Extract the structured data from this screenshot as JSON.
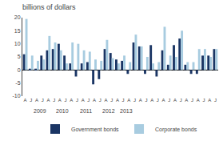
{
  "chart_data": {
    "type": "bar",
    "title": "billions of dollars",
    "categories": [
      "A",
      "J",
      "A",
      "J",
      "A",
      "J",
      "A",
      "J",
      "A",
      "J",
      "A",
      "J",
      "A",
      "J",
      "A",
      "J",
      "A",
      "J",
      "A",
      "J",
      "A",
      "J",
      "A",
      "J",
      "A",
      "J",
      "A",
      "J",
      "A",
      "J",
      "A",
      "J",
      "A",
      "J"
    ],
    "series": [
      {
        "name": "Government bonds",
        "color": "#1a3564",
        "values": [
          6.0,
          0.5,
          0.5,
          5.5,
          7.5,
          8.0,
          10.0,
          5.5,
          2.5,
          -2.5,
          2.5,
          3.0,
          -5.5,
          -3.5,
          8.0,
          6.5,
          4.0,
          3.5,
          -1.5,
          10.5,
          9.0,
          -1.5,
          9.5,
          -2.5,
          7.5,
          2.0,
          9.5,
          12.0,
          2.0,
          -1.5,
          -1.5,
          5.5,
          5.5,
          8.0
        ]
      },
      {
        "name": "Corporate bonds",
        "color": "#a8cce0",
        "values": [
          19.5,
          5.5,
          3.5,
          4.0,
          13.0,
          10.5,
          7.5,
          2.5,
          10.5,
          10.0,
          7.5,
          7.0,
          4.0,
          3.5,
          11.5,
          4.5,
          2.5,
          5.5,
          3.0,
          13.5,
          9.0,
          5.0,
          2.5,
          3.0,
          16.5,
          5.5,
          5.0,
          15.0,
          3.0,
          3.0,
          8.0,
          8.0,
          5.0,
          8.0
        ]
      }
    ],
    "ylim": [
      -10,
      20
    ],
    "yticks": [
      -10,
      -5,
      0,
      5,
      10,
      15,
      20
    ],
    "grid": false,
    "legend": "bottom",
    "annotations": [
      {
        "text": "2009",
        "x": 2.5
      },
      {
        "text": "2010",
        "x": 6.5
      },
      {
        "text": "2011",
        "x": 10.5
      },
      {
        "text": "2012",
        "x": 14.5
      },
      {
        "text": "2013",
        "x": 17.5
      }
    ]
  }
}
